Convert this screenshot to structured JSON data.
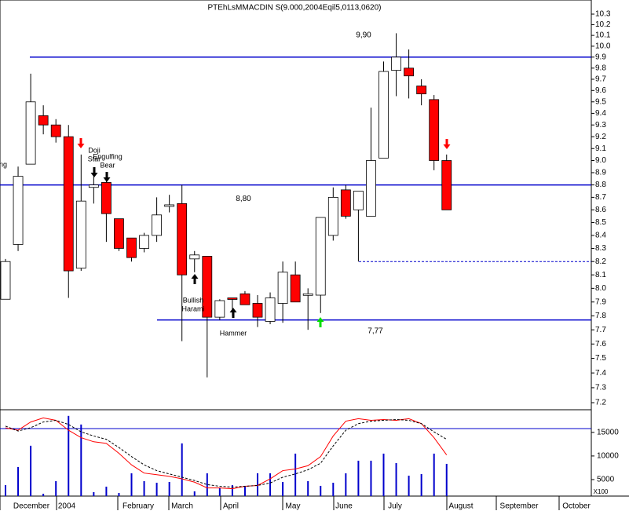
{
  "chart_data": {
    "type": "candlestick",
    "title": "PTEhLsMMACDIN S(9.000,2004Eqil5,0113,0620)",
    "log": true,
    "ylim": [
      7.2,
      10.3
    ],
    "yticks": [
      7.2,
      7.3,
      7.4,
      7.5,
      7.6,
      7.7,
      7.8,
      7.9,
      {
        "value": 8,
        "label": "8.0"
      },
      8.1,
      8.2,
      8.3,
      8.4,
      8.5,
      8.6,
      8.7,
      8.8,
      8.9,
      {
        "value": 9,
        "label": "9.0"
      },
      9.1,
      9.2,
      9.3,
      9.4,
      9.5,
      9.6,
      9.7,
      9.8,
      9.9,
      {
        "value": 10,
        "label": "10.0"
      },
      10.1,
      10.2,
      10.3
    ],
    "months": [
      "December",
      "2004",
      "February",
      "March",
      "April",
      "May",
      "June",
      "July",
      "August",
      "September",
      "October"
    ],
    "open": [
      7.92,
      8.33,
      8.97,
      9.38,
      9.3,
      9.2,
      8.15,
      8.78,
      8.82,
      8.53,
      8.38,
      8.3,
      8.4,
      8.64,
      8.65,
      8.22,
      8.24,
      7.79,
      7.93,
      7.96,
      7.89,
      7.76,
      7.89,
      8.1,
      7.95,
      7.95,
      8.4,
      8.76,
      8.6,
      8.55,
      9.02,
      9.78,
      9.8,
      9.64,
      9.52,
      9.0
    ],
    "high": [
      8.22,
      8.95,
      9.75,
      9.47,
      9.35,
      9.3,
      9.05,
      8.87,
      8.83,
      8.53,
      8.38,
      8.42,
      8.7,
      8.72,
      8.8,
      8.28,
      8.24,
      7.92,
      7.93,
      7.98,
      7.95,
      7.97,
      8.2,
      8.2,
      8.0,
      8.54,
      8.78,
      8.8,
      8.75,
      9.45,
      9.86,
      10.12,
      9.97,
      9.7,
      9.56,
      9.05
    ],
    "low": [
      7.92,
      8.28,
      8.97,
      9.22,
      9.15,
      7.93,
      8.13,
      8.65,
      8.35,
      8.28,
      8.2,
      8.27,
      8.35,
      8.58,
      7.62,
      8.12,
      7.37,
      7.77,
      7.8,
      7.88,
      7.72,
      7.74,
      7.75,
      7.9,
      7.7,
      7.82,
      8.36,
      8.53,
      8.2,
      8.55,
      9.02,
      9.55,
      9.53,
      9.47,
      8.92,
      8.6
    ],
    "close": [
      8.2,
      8.87,
      9.5,
      9.3,
      9.2,
      8.13,
      8.67,
      8.8,
      8.57,
      8.3,
      8.23,
      8.4,
      8.56,
      8.64,
      8.1,
      8.25,
      7.79,
      7.91,
      7.92,
      7.88,
      7.79,
      7.93,
      8.12,
      7.9,
      7.96,
      8.54,
      8.7,
      8.55,
      8.75,
      9.0,
      9.77,
      9.9,
      9.73,
      9.57,
      9.0,
      8.6
    ],
    "up_color": "#ffffff",
    "down_color": "#ff0000",
    "line_color": "#0000cc",
    "levels": [
      {
        "value": 9.9,
        "label": "9,90"
      },
      {
        "value": 8.8,
        "label": "8,80"
      },
      {
        "value": 7.77,
        "label": "7,77"
      }
    ],
    "support": 8.2,
    "annotations": [
      [
        "ing"
      ],
      [
        "Doji",
        "Star"
      ],
      [
        "Engulfing",
        "Bear"
      ],
      [
        "Bullish",
        "Harami"
      ],
      [
        "Hammer"
      ]
    ],
    "volume": {
      "values": [
        3830,
        7670,
        12170,
        2000,
        4670,
        18500,
        16670,
        2330,
        3500,
        2170,
        6330,
        4670,
        4330,
        4500,
        12670,
        2500,
        6330,
        3170,
        3830,
        3670,
        6330,
        6330,
        4500,
        10500,
        4670,
        3670,
        4330,
        6330,
        9000,
        9000,
        10500,
        8500,
        5830,
        6170,
        10500,
        8330
      ],
      "color": "#0000cc",
      "ylim": [
        1500,
        19300
      ],
      "yticks": [
        5000,
        10000,
        15000
      ],
      "unit": "X100"
    },
    "stochastic": {
      "ylim": [
        0,
        100
      ],
      "level": 80,
      "series": [
        {
          "color": "#ff0000",
          "values": [
            81,
            78,
            88,
            93,
            90,
            78,
            69,
            64,
            62,
            50,
            36,
            26,
            24,
            22,
            19,
            15,
            8,
            8,
            7,
            10,
            11,
            19,
            29,
            31,
            35,
            46,
            71,
            89,
            92,
            90,
            91,
            90,
            92,
            86,
            69,
            48
          ]
        },
        {
          "color": "#000000",
          "values": [
            83,
            77,
            81,
            88,
            90,
            85,
            76,
            71,
            67,
            57,
            46,
            36,
            29,
            25,
            21,
            17,
            12,
            10,
            9,
            10,
            11,
            14,
            21,
            25,
            30,
            38,
            59,
            78,
            86,
            89,
            90,
            91,
            90,
            86,
            76,
            67
          ]
        }
      ]
    }
  }
}
